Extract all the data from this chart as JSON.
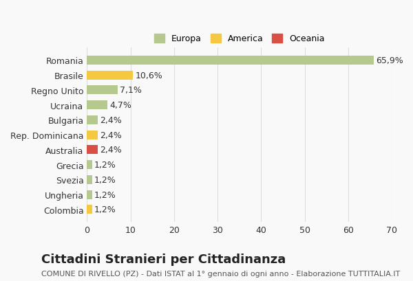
{
  "categories": [
    "Romania",
    "Brasile",
    "Regno Unito",
    "Ucraina",
    "Bulgaria",
    "Rep. Dominicana",
    "Australia",
    "Grecia",
    "Svezia",
    "Ungheria",
    "Colombia"
  ],
  "values": [
    65.9,
    10.6,
    7.1,
    4.7,
    2.4,
    2.4,
    2.4,
    1.2,
    1.2,
    1.2,
    1.2
  ],
  "labels": [
    "65,9%",
    "10,6%",
    "7,1%",
    "4,7%",
    "2,4%",
    "2,4%",
    "2,4%",
    "1,2%",
    "1,2%",
    "1,2%",
    "1,2%"
  ],
  "colors": [
    "#b5c98e",
    "#f5c842",
    "#b5c98e",
    "#b5c98e",
    "#b5c98e",
    "#f5c842",
    "#d94f43",
    "#b5c98e",
    "#b5c98e",
    "#b5c98e",
    "#f5c842"
  ],
  "legend": [
    {
      "label": "Europa",
      "color": "#b5c98e"
    },
    {
      "label": "America",
      "color": "#f5c842"
    },
    {
      "label": "Oceania",
      "color": "#d94f43"
    }
  ],
  "xlim": [
    0,
    70
  ],
  "xticks": [
    0,
    10,
    20,
    30,
    40,
    50,
    60,
    70
  ],
  "title": "Cittadini Stranieri per Cittadinanza",
  "subtitle": "COMUNE DI RIVELLO (PZ) - Dati ISTAT al 1° gennaio di ogni anno - Elaborazione TUTTITALIA.IT",
  "bg_color": "#f9f9f9",
  "grid_color": "#dddddd",
  "bar_label_fontsize": 9,
  "axis_label_fontsize": 9,
  "title_fontsize": 13,
  "subtitle_fontsize": 8
}
